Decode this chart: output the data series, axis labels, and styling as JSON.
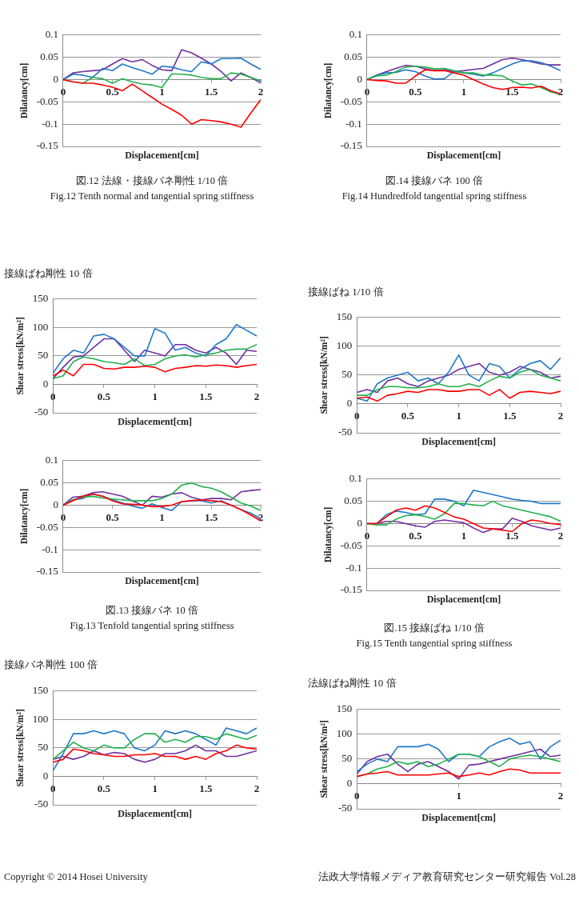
{
  "chart_data": [
    {
      "type": "line",
      "xlabel": "Displacement[cm]",
      "ylabel": "Dilatancy[cm]",
      "xlim": [
        0,
        2
      ],
      "xticks": [
        0,
        0.5,
        1,
        1.5,
        2
      ],
      "ylim": [
        -0.15,
        0.1
      ],
      "yticks": [
        -0.15,
        -0.1,
        -0.05,
        0,
        0.05,
        0.1
      ],
      "grid": "y",
      "x": [
        0,
        0.1,
        0.2,
        0.3,
        0.4,
        0.5,
        0.6,
        0.7,
        0.8,
        0.9,
        1,
        1.1,
        1.2,
        1.3,
        1.4,
        1.5,
        1.6,
        1.7,
        1.8,
        1.9,
        2
      ],
      "series": [
        {
          "color": "#ff0000",
          "values": [
            0,
            -0.005,
            -0.008,
            -0.008,
            -0.012,
            -0.017,
            -0.025,
            -0.01,
            -0.025,
            -0.04,
            -0.055,
            -0.067,
            -0.08,
            -0.1,
            -0.09,
            -0.092,
            -0.095,
            -0.1,
            -0.107,
            -0.075,
            -0.045
          ]
        },
        {
          "color": "#22b04c",
          "values": [
            0,
            -0.005,
            -0.008,
            0.005,
            0.002,
            -0.008,
            0.002,
            -0.005,
            -0.01,
            -0.012,
            -0.018,
            0.013,
            0.012,
            0.01,
            0.005,
            0.002,
            0.002,
            0.015,
            0.012,
            0.005,
            -0.003
          ]
        },
        {
          "color": "#1f78c8",
          "values": [
            0,
            0.012,
            0.01,
            0.005,
            0.025,
            0.02,
            0.035,
            0.027,
            0.02,
            0.012,
            0.03,
            0.028,
            0.022,
            0.018,
            0.04,
            0.035,
            0.047,
            0.047,
            0.048,
            0.035,
            0.023
          ]
        },
        {
          "color": "#7030a0",
          "values": [
            0,
            0.015,
            0.018,
            0.02,
            0.022,
            0.035,
            0.047,
            0.04,
            0.045,
            0.032,
            0.022,
            0.02,
            0.067,
            0.06,
            0.048,
            0.035,
            0.018,
            -0.003,
            0.015,
            0.005,
            -0.008
          ]
        }
      ],
      "annotations": [
        "図.12 法線・接線バネ剛性 1/10 倍",
        "Fig.12 Tenth normal and tangential spring stiffness"
      ]
    },
    {
      "type": "line",
      "xlabel": "Displacement[cm]",
      "ylabel": "Dilatancy[cm]",
      "xlim": [
        0,
        2
      ],
      "xticks": [
        0,
        0.5,
        1,
        1.5,
        2
      ],
      "ylim": [
        -0.15,
        0.1
      ],
      "yticks": [
        -0.15,
        -0.1,
        -0.05,
        0,
        0.05,
        0.1
      ],
      "grid": "y",
      "x": [
        0,
        0.1,
        0.2,
        0.3,
        0.4,
        0.5,
        0.6,
        0.7,
        0.8,
        0.9,
        1,
        1.1,
        1.2,
        1.3,
        1.4,
        1.5,
        1.6,
        1.7,
        1.8,
        1.9,
        2
      ],
      "series": [
        {
          "color": "#ff0000",
          "values": [
            0,
            -0.002,
            -0.003,
            -0.008,
            -0.008,
            0.008,
            0.022,
            0.02,
            0.02,
            0.015,
            0.01,
            0,
            -0.01,
            -0.018,
            -0.022,
            -0.018,
            -0.017,
            -0.019,
            -0.015,
            -0.025,
            -0.032
          ]
        },
        {
          "color": "#22b04c",
          "values": [
            0,
            0.008,
            0.01,
            0.018,
            0.028,
            0.03,
            0.028,
            0.024,
            0.025,
            0.02,
            0.015,
            0.015,
            0.01,
            0.01,
            0.008,
            -0.003,
            -0.012,
            -0.01,
            -0.018,
            -0.028,
            -0.033
          ]
        },
        {
          "color": "#1f78c8",
          "values": [
            0,
            0.01,
            0.015,
            0.016,
            0.022,
            0.018,
            0.008,
            0.001,
            0.002,
            0.018,
            0.015,
            0.012,
            0.008,
            0.015,
            0.025,
            0.035,
            0.042,
            0.042,
            0.038,
            0.03,
            0.02
          ]
        },
        {
          "color": "#7030a0",
          "values": [
            0,
            0.01,
            0.018,
            0.025,
            0.032,
            0.03,
            0.024,
            0.02,
            0.022,
            0.018,
            0.02,
            0.023,
            0.025,
            0.035,
            0.045,
            0.048,
            0.045,
            0.04,
            0.035,
            0.033,
            0.033
          ]
        }
      ],
      "annotations": [
        "図.14 接線バネ 100 倍",
        "Fig.14 Hundredfold tangential spring stiffness"
      ]
    },
    {
      "type": "line",
      "title": "接線ばね剛性 10 倍",
      "xlabel": "Displacement[cm]",
      "ylabel": "Shear stress[kN/m²]",
      "xlim": [
        0,
        2
      ],
      "xticks": [
        0,
        0.5,
        1,
        1.5,
        2
      ],
      "ylim": [
        -50,
        150
      ],
      "yticks": [
        -50,
        0,
        50,
        100,
        150
      ],
      "grid": "y",
      "x": [
        0,
        0.1,
        0.2,
        0.3,
        0.4,
        0.5,
        0.6,
        0.7,
        0.8,
        0.9,
        1,
        1.1,
        1.2,
        1.3,
        1.4,
        1.5,
        1.6,
        1.7,
        1.8,
        1.9,
        2
      ],
      "series": [
        {
          "color": "#ff0000",
          "values": [
            15,
            25,
            15,
            35,
            35,
            28,
            27,
            30,
            30,
            32,
            30,
            22,
            28,
            30,
            33,
            32,
            34,
            33,
            30,
            33,
            35
          ]
        },
        {
          "color": "#22b04c",
          "values": [
            10,
            15,
            40,
            48,
            45,
            40,
            38,
            35,
            45,
            33,
            35,
            45,
            50,
            52,
            48,
            52,
            55,
            60,
            62,
            62,
            70
          ]
        },
        {
          "color": "#1f78c8",
          "values": [
            20,
            45,
            60,
            55,
            85,
            88,
            80,
            65,
            50,
            50,
            98,
            90,
            60,
            65,
            55,
            50,
            70,
            80,
            105,
            95,
            85
          ]
        },
        {
          "color": "#7030a0",
          "values": [
            10,
            30,
            48,
            50,
            65,
            80,
            80,
            60,
            40,
            60,
            55,
            50,
            70,
            70,
            60,
            55,
            65,
            55,
            35,
            60,
            58
          ]
        }
      ]
    },
    {
      "type": "line",
      "title": "接線ばね 1/10 倍",
      "xlabel": "Displacement[cm]",
      "ylabel": "Shear stress[kN/m²]",
      "xlim": [
        0,
        2
      ],
      "xticks": [
        0,
        0.5,
        1,
        1.5,
        2
      ],
      "ylim": [
        -50,
        150
      ],
      "yticks": [
        -50,
        0,
        50,
        100,
        150
      ],
      "grid": "y",
      "x": [
        0,
        0.1,
        0.2,
        0.3,
        0.4,
        0.5,
        0.6,
        0.7,
        0.8,
        0.9,
        1,
        1.1,
        1.2,
        1.3,
        1.4,
        1.5,
        1.6,
        1.7,
        1.8,
        1.9,
        2
      ],
      "series": [
        {
          "color": "#ff0000",
          "values": [
            10,
            12,
            5,
            15,
            18,
            22,
            20,
            25,
            25,
            22,
            22,
            25,
            25,
            15,
            25,
            10,
            20,
            22,
            20,
            18,
            22
          ]
        },
        {
          "color": "#22b04c",
          "values": [
            15,
            15,
            25,
            30,
            30,
            28,
            28,
            30,
            35,
            30,
            30,
            35,
            30,
            40,
            48,
            45,
            55,
            60,
            50,
            45,
            40
          ]
        },
        {
          "color": "#1f78c8",
          "values": [
            10,
            5,
            35,
            45,
            50,
            55,
            40,
            45,
            35,
            55,
            85,
            50,
            40,
            70,
            65,
            45,
            60,
            70,
            75,
            60,
            80
          ]
        },
        {
          "color": "#7030a0",
          "values": [
            20,
            25,
            20,
            40,
            45,
            35,
            30,
            40,
            45,
            50,
            60,
            65,
            70,
            55,
            50,
            55,
            65,
            60,
            55,
            45,
            48
          ]
        }
      ]
    },
    {
      "type": "line",
      "xlabel": "Displacement[cm]",
      "ylabel": "Dilatancy[cm]",
      "xlim": [
        0,
        2
      ],
      "xticks": [
        0,
        0.5,
        1,
        1.5,
        2
      ],
      "ylim": [
        -0.15,
        0.1
      ],
      "yticks": [
        -0.15,
        -0.1,
        -0.05,
        0,
        0.05,
        0.1
      ],
      "grid": "y",
      "x": [
        0,
        0.1,
        0.2,
        0.3,
        0.4,
        0.5,
        0.6,
        0.7,
        0.8,
        0.9,
        1,
        1.1,
        1.2,
        1.3,
        1.4,
        1.5,
        1.6,
        1.7,
        1.8,
        1.9,
        2
      ],
      "series": [
        {
          "color": "#ff0000",
          "values": [
            0,
            0.01,
            0.02,
            0.025,
            0.02,
            0.01,
            0.003,
            0.002,
            0,
            -0.003,
            -0.003,
            0,
            0.008,
            0.01,
            0.012,
            0.01,
            0.008,
            0,
            -0.01,
            -0.022,
            -0.035
          ]
        },
        {
          "color": "#22b04c",
          "values": [
            0,
            0.012,
            0.018,
            0.02,
            0.016,
            0.014,
            0.012,
            0.01,
            0.01,
            0.01,
            0.015,
            0.025,
            0.045,
            0.05,
            0.042,
            0.038,
            0.03,
            0.018,
            0.005,
            -0.002,
            -0.012
          ]
        },
        {
          "color": "#1f78c8",
          "values": [
            0,
            0.012,
            0.015,
            0.025,
            0.02,
            0.012,
            0.005,
            -0.002,
            -0.007,
            0.003,
            -0.005,
            -0.012,
            0.008,
            0.01,
            0.01,
            0.005,
            0.01,
            0,
            -0.01,
            -0.018,
            -0.03
          ]
        },
        {
          "color": "#7030a0",
          "values": [
            0,
            0.018,
            0.02,
            0.028,
            0.03,
            0.025,
            0.02,
            0.01,
            0,
            0.02,
            0.018,
            0.025,
            0.028,
            0.018,
            0.012,
            0.015,
            0.015,
            0.012,
            0.03,
            0.033,
            0.035
          ]
        }
      ],
      "annotations": [
        "図.13 接線バネ 10 倍",
        "Fig.13 Tenfold tangential spring stiffness"
      ]
    },
    {
      "type": "line",
      "xlabel": "Displacement[cm]",
      "ylabel": "Dilatancy[cm]",
      "xlim": [
        0,
        2
      ],
      "xticks": [
        0,
        0.5,
        1,
        1.5,
        2
      ],
      "ylim": [
        -0.15,
        0.1
      ],
      "yticks": [
        -0.15,
        -0.1,
        -0.05,
        0,
        0.05,
        0.1
      ],
      "grid": "y",
      "x": [
        0,
        0.1,
        0.2,
        0.3,
        0.4,
        0.5,
        0.6,
        0.7,
        0.8,
        0.9,
        1,
        1.1,
        1.2,
        1.3,
        1.4,
        1.5,
        1.6,
        1.7,
        1.8,
        1.9,
        2
      ],
      "series": [
        {
          "color": "#ff0000",
          "values": [
            0,
            0,
            0.015,
            0.03,
            0.035,
            0.03,
            0.04,
            0.035,
            0.025,
            0.015,
            0.01,
            0,
            -0.01,
            -0.012,
            -0.015,
            -0.018,
            0,
            0.008,
            0.005,
            0,
            -0.002
          ]
        },
        {
          "color": "#22b04c",
          "values": [
            0,
            -0.003,
            -0.003,
            0.01,
            0.018,
            0.02,
            0.016,
            0.01,
            0.022,
            0.045,
            0.045,
            0.042,
            0.04,
            0.05,
            0.04,
            0.035,
            0.03,
            0.025,
            0.02,
            0.015,
            0.005
          ]
        },
        {
          "color": "#1f78c8",
          "values": [
            0,
            0,
            0.02,
            0.028,
            0.025,
            0.02,
            0.022,
            0.055,
            0.055,
            0.05,
            0.04,
            0.075,
            0.07,
            0.065,
            0.06,
            0.055,
            0.052,
            0.05,
            0.045,
            0.045,
            0.045
          ]
        },
        {
          "color": "#7030a0",
          "values": [
            0,
            0,
            0.005,
            0.005,
            0,
            -0.005,
            -0.008,
            0.005,
            0.008,
            0.005,
            0.002,
            -0.01,
            -0.02,
            -0.012,
            -0.012,
            0.012,
            0.005,
            -0.005,
            -0.01,
            -0.015,
            -0.01
          ]
        }
      ],
      "annotations": [
        "図.15 接線ばね 1/10 倍",
        "Fig.15 Tenth tangential spring stiffness"
      ]
    },
    {
      "type": "line",
      "title": "接線バネ剛性 100 倍",
      "xlabel": "Displacement[cm]",
      "ylabel": "Shear stress[kN/m²]",
      "xlim": [
        0,
        2
      ],
      "xticks": [
        0,
        0.5,
        1,
        1.5,
        2
      ],
      "ylim": [
        -50,
        150
      ],
      "yticks": [
        -50,
        0,
        50,
        100,
        150
      ],
      "grid": "y",
      "x": [
        0,
        0.1,
        0.2,
        0.3,
        0.4,
        0.5,
        0.6,
        0.7,
        0.8,
        0.9,
        1,
        1.1,
        1.2,
        1.3,
        1.4,
        1.5,
        1.6,
        1.7,
        1.8,
        1.9,
        2
      ],
      "series": [
        {
          "color": "#ff0000",
          "values": [
            25,
            30,
            48,
            45,
            40,
            38,
            35,
            35,
            38,
            38,
            40,
            35,
            35,
            30,
            35,
            30,
            40,
            45,
            55,
            50,
            48
          ]
        },
        {
          "color": "#22b04c",
          "values": [
            30,
            45,
            60,
            50,
            45,
            55,
            50,
            50,
            65,
            75,
            75,
            60,
            65,
            60,
            70,
            70,
            65,
            75,
            70,
            65,
            72
          ]
        },
        {
          "color": "#1f78c8",
          "values": [
            10,
            40,
            75,
            75,
            80,
            75,
            80,
            75,
            50,
            45,
            55,
            80,
            75,
            80,
            75,
            65,
            55,
            85,
            80,
            75,
            85
          ]
        },
        {
          "color": "#7030a0",
          "values": [
            30,
            35,
            30,
            35,
            45,
            38,
            42,
            40,
            30,
            25,
            30,
            40,
            40,
            45,
            55,
            45,
            45,
            35,
            35,
            40,
            45
          ]
        }
      ],
      "annotations": [
        "Copyright © 2014 Hosei University"
      ]
    },
    {
      "type": "line",
      "title": "法線ばね剛性 10 倍",
      "xlabel": "Displacement[cm]",
      "ylabel": "Shear stress[kN/m²]",
      "xlim": [
        0,
        2
      ],
      "xticks": [
        0,
        1,
        2
      ],
      "ylim": [
        -50,
        150
      ],
      "yticks": [
        -50,
        0,
        50,
        100,
        150
      ],
      "grid": "y",
      "x": [
        0,
        0.1,
        0.2,
        0.3,
        0.4,
        0.5,
        0.6,
        0.7,
        0.8,
        0.9,
        1,
        1.1,
        1.2,
        1.3,
        1.4,
        1.5,
        1.6,
        1.7,
        1.8,
        1.9,
        2
      ],
      "series": [
        {
          "color": "#ff0000",
          "values": [
            15,
            20,
            22,
            25,
            18,
            18,
            18,
            18,
            20,
            22,
            15,
            18,
            22,
            18,
            25,
            30,
            28,
            22,
            22,
            22,
            22
          ]
        },
        {
          "color": "#22b04c",
          "values": [
            15,
            20,
            30,
            35,
            45,
            40,
            45,
            35,
            40,
            50,
            60,
            60,
            55,
            45,
            35,
            50,
            55,
            58,
            55,
            50,
            45
          ]
        },
        {
          "color": "#1f78c8",
          "values": [
            25,
            40,
            50,
            45,
            75,
            75,
            75,
            80,
            70,
            45,
            60,
            60,
            55,
            75,
            85,
            92,
            80,
            85,
            50,
            75,
            88
          ]
        },
        {
          "color": "#7030a0",
          "values": [
            20,
            45,
            55,
            60,
            40,
            25,
            40,
            45,
            35,
            25,
            10,
            38,
            40,
            45,
            50,
            55,
            60,
            65,
            70,
            55,
            58
          ]
        }
      ],
      "annotations": [
        "法政大学情報メディア教育研究センター研究報告 Vol.28"
      ]
    }
  ]
}
